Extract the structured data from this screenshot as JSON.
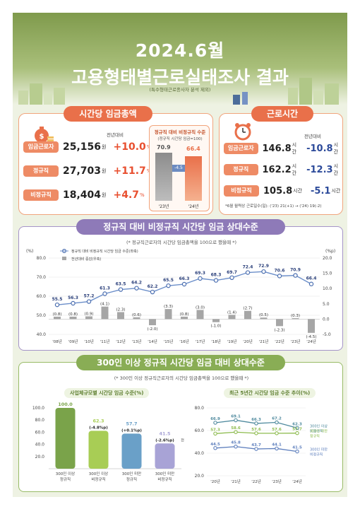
{
  "header": {
    "title1": "2024.6월",
    "title2": "고용형태별근로실태조사 결과",
    "subtitle": "(특수형태근로종사자 분석 제외)"
  },
  "wage_card": {
    "title": "시간당 임금총액",
    "yoy_label": "전년대비",
    "rows": [
      {
        "label": "임금근로자",
        "value": "25,156",
        "unit": "원",
        "change": "+10.0",
        "change_unit": "%"
      },
      {
        "label": "정규직",
        "value": "27,703",
        "unit": "원",
        "change": "+11.7",
        "change_unit": "%"
      },
      {
        "label": "비정규직",
        "value": "18,404",
        "unit": "원",
        "change": "+4.7",
        "change_unit": "%"
      }
    ],
    "mini": {
      "title": "정규직 대비 비정규직 수준",
      "note": "(정규직 시간당 임금=100)",
      "bars": [
        {
          "label": "'23년",
          "value": "70.9"
        },
        {
          "label": "'24년",
          "value": "66.4"
        }
      ],
      "diff": "-4.5"
    }
  },
  "hours_card": {
    "title": "근로시간",
    "yoy_label": "전년대비",
    "rows": [
      {
        "label": "임금근로자",
        "value": "146.8",
        "unit": "시간",
        "change": "-10.8",
        "change_unit": "시간"
      },
      {
        "label": "정규직",
        "value": "162.2",
        "unit": "시간",
        "change": "-12.3",
        "change_unit": "시간"
      },
      {
        "label": "비정규직",
        "value": "105.8",
        "unit": "시간",
        "change": "-5.1",
        "change_unit": "시간"
      }
    ],
    "footnote": "*6월 월력상 근로일수(일): ('23) 21(+1) → ('24) 19(-2)"
  },
  "section2": {
    "title": "정규직 대비 비정규직 시간당 임금 상대수준",
    "note": "(* 정규직근로자의 시간당 임금총액을 100으로 했을때 *)"
  },
  "section3": {
    "title": "300인 이상 정규직 시간당 임금 대비 상대수준",
    "note": "(* 300인 이상 정규직근로자의 시간당 임금총액을 100으로 했을때 *)",
    "left_title": "사업체규모별 시간당 임금 수준(%)",
    "right_title": "최근 5년간 시간당 임금 수준 추이(%)",
    "right_legend": [
      "300인 이상 비정규직",
      "300인 미만 정규직",
      "300인 미만 비정규직"
    ],
    "yoy_note": "전년대비"
  },
  "colors": {
    "orange": "#e9704a",
    "purple": "#8e7ab8",
    "green": "#89ad55",
    "line_blue": "#6b8ec9",
    "bar_gray": "#a6a6a6"
  },
  "chart_data": [
    {
      "type": "line",
      "title": "",
      "ylabel_left": "(%)",
      "ylabel_right": "(%p)",
      "x": [
        "'08년",
        "'09년",
        "'10년",
        "'11년",
        "'12년",
        "'13년",
        "'14년",
        "'15년",
        "'16년",
        "'17년",
        "'18년",
        "'19년",
        "'20년",
        "'21년",
        "'22년",
        "'23년",
        "'24년"
      ],
      "ylim_left": [
        40.0,
        80.0
      ],
      "yticks_left": [
        "80.0",
        "70.0",
        "60.0",
        "50.0",
        "40.0"
      ],
      "ylim_right": [
        -5.0,
        20.0
      ],
      "yticks_right": [
        "20.0",
        "15.0",
        "10.0",
        "5.0",
        "0.0",
        "-5.0"
      ],
      "series": [
        {
          "name": "정규직 대비 비정규직 시간당 임금 수준(좌축)",
          "kind": "line",
          "values": [
            55.5,
            56.3,
            57.2,
            61.3,
            63.5,
            64.2,
            62.2,
            65.5,
            66.3,
            69.3,
            68.3,
            69.7,
            72.4,
            72.9,
            70.6,
            70.9,
            66.4
          ],
          "labels": [
            "55.5",
            "56.3",
            "57.2",
            "61.3",
            "63.5",
            "64.2",
            "62.2",
            "65.5",
            "66.3",
            "69.3",
            "68.3",
            "69.7",
            "72.4",
            "72.9",
            "70.6",
            "70.9",
            "66.4"
          ]
        },
        {
          "name": "전년대비 증감(우축)",
          "kind": "bar",
          "values": [
            0.8,
            0.8,
            0.9,
            4.1,
            2.3,
            0.6,
            -2.0,
            3.3,
            0.8,
            3.0,
            -1.0,
            1.4,
            2.7,
            0.5,
            -2.3,
            0.3,
            -4.5
          ],
          "labels": [
            "(0.8)",
            "(0.8)",
            "(0.9)",
            "(4.1)",
            "(2.3)",
            "(0.6)",
            "(-2.0)",
            "(3.3)",
            "(0.8)",
            "(3.0)",
            "(-1.0)",
            "(1.4)",
            "(2.7)",
            "(0.5)",
            "(-2.3)",
            "(0.3)",
            "(-4.5)"
          ]
        }
      ]
    },
    {
      "type": "bar",
      "title": "사업체규모별 시간당 임금 수준(%)",
      "categories": [
        "300인 이상 정규직",
        "300인 이상 비정규직",
        "300인 미만 정규직",
        "300인 미만 비정규직"
      ],
      "values": [
        100.0,
        62.3,
        57.7,
        41.5
      ],
      "labels": [
        "100.0",
        "62.3",
        "57.7",
        "41.5"
      ],
      "changes": [
        "",
        "(-4.8%p)",
        "(+0.1%p)",
        "(-2.6%p)"
      ],
      "ylim": [
        0,
        100
      ],
      "yticks": [
        "100.0",
        "80.0",
        "60.0",
        "40.0",
        "20.0"
      ]
    },
    {
      "type": "line",
      "title": "최근 5년간 시간당 임금 수준 추이(%)",
      "x": [
        "'20년",
        "'21년",
        "'22년",
        "'23년",
        "'24년"
      ],
      "ylim": [
        20.0,
        80.0
      ],
      "yticks": [
        "80.0",
        "60.0",
        "40.0",
        "20.0"
      ],
      "series": [
        {
          "name": "300인 이상 비정규직",
          "values": [
            66.9,
            69.1,
            66.3,
            67.2,
            62.3
          ]
        },
        {
          "name": "300인 미만 정규직",
          "values": [
            57.3,
            58.6,
            57.6,
            57.6,
            57.7
          ]
        },
        {
          "name": "300인 미만 비정규직",
          "values": [
            44.5,
            45.8,
            43.7,
            44.1,
            41.5
          ]
        }
      ]
    }
  ]
}
